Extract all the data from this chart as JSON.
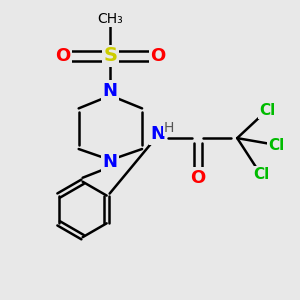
{
  "background_color": "#e8e8e8",
  "figsize": [
    3.0,
    3.0
  ],
  "dpi": 100,
  "colors": {
    "S": "#cccc00",
    "O": "#ff0000",
    "N": "#0000ff",
    "Cl": "#00bb00",
    "C": "#000000",
    "H": "#555555",
    "bond": "#000000"
  }
}
